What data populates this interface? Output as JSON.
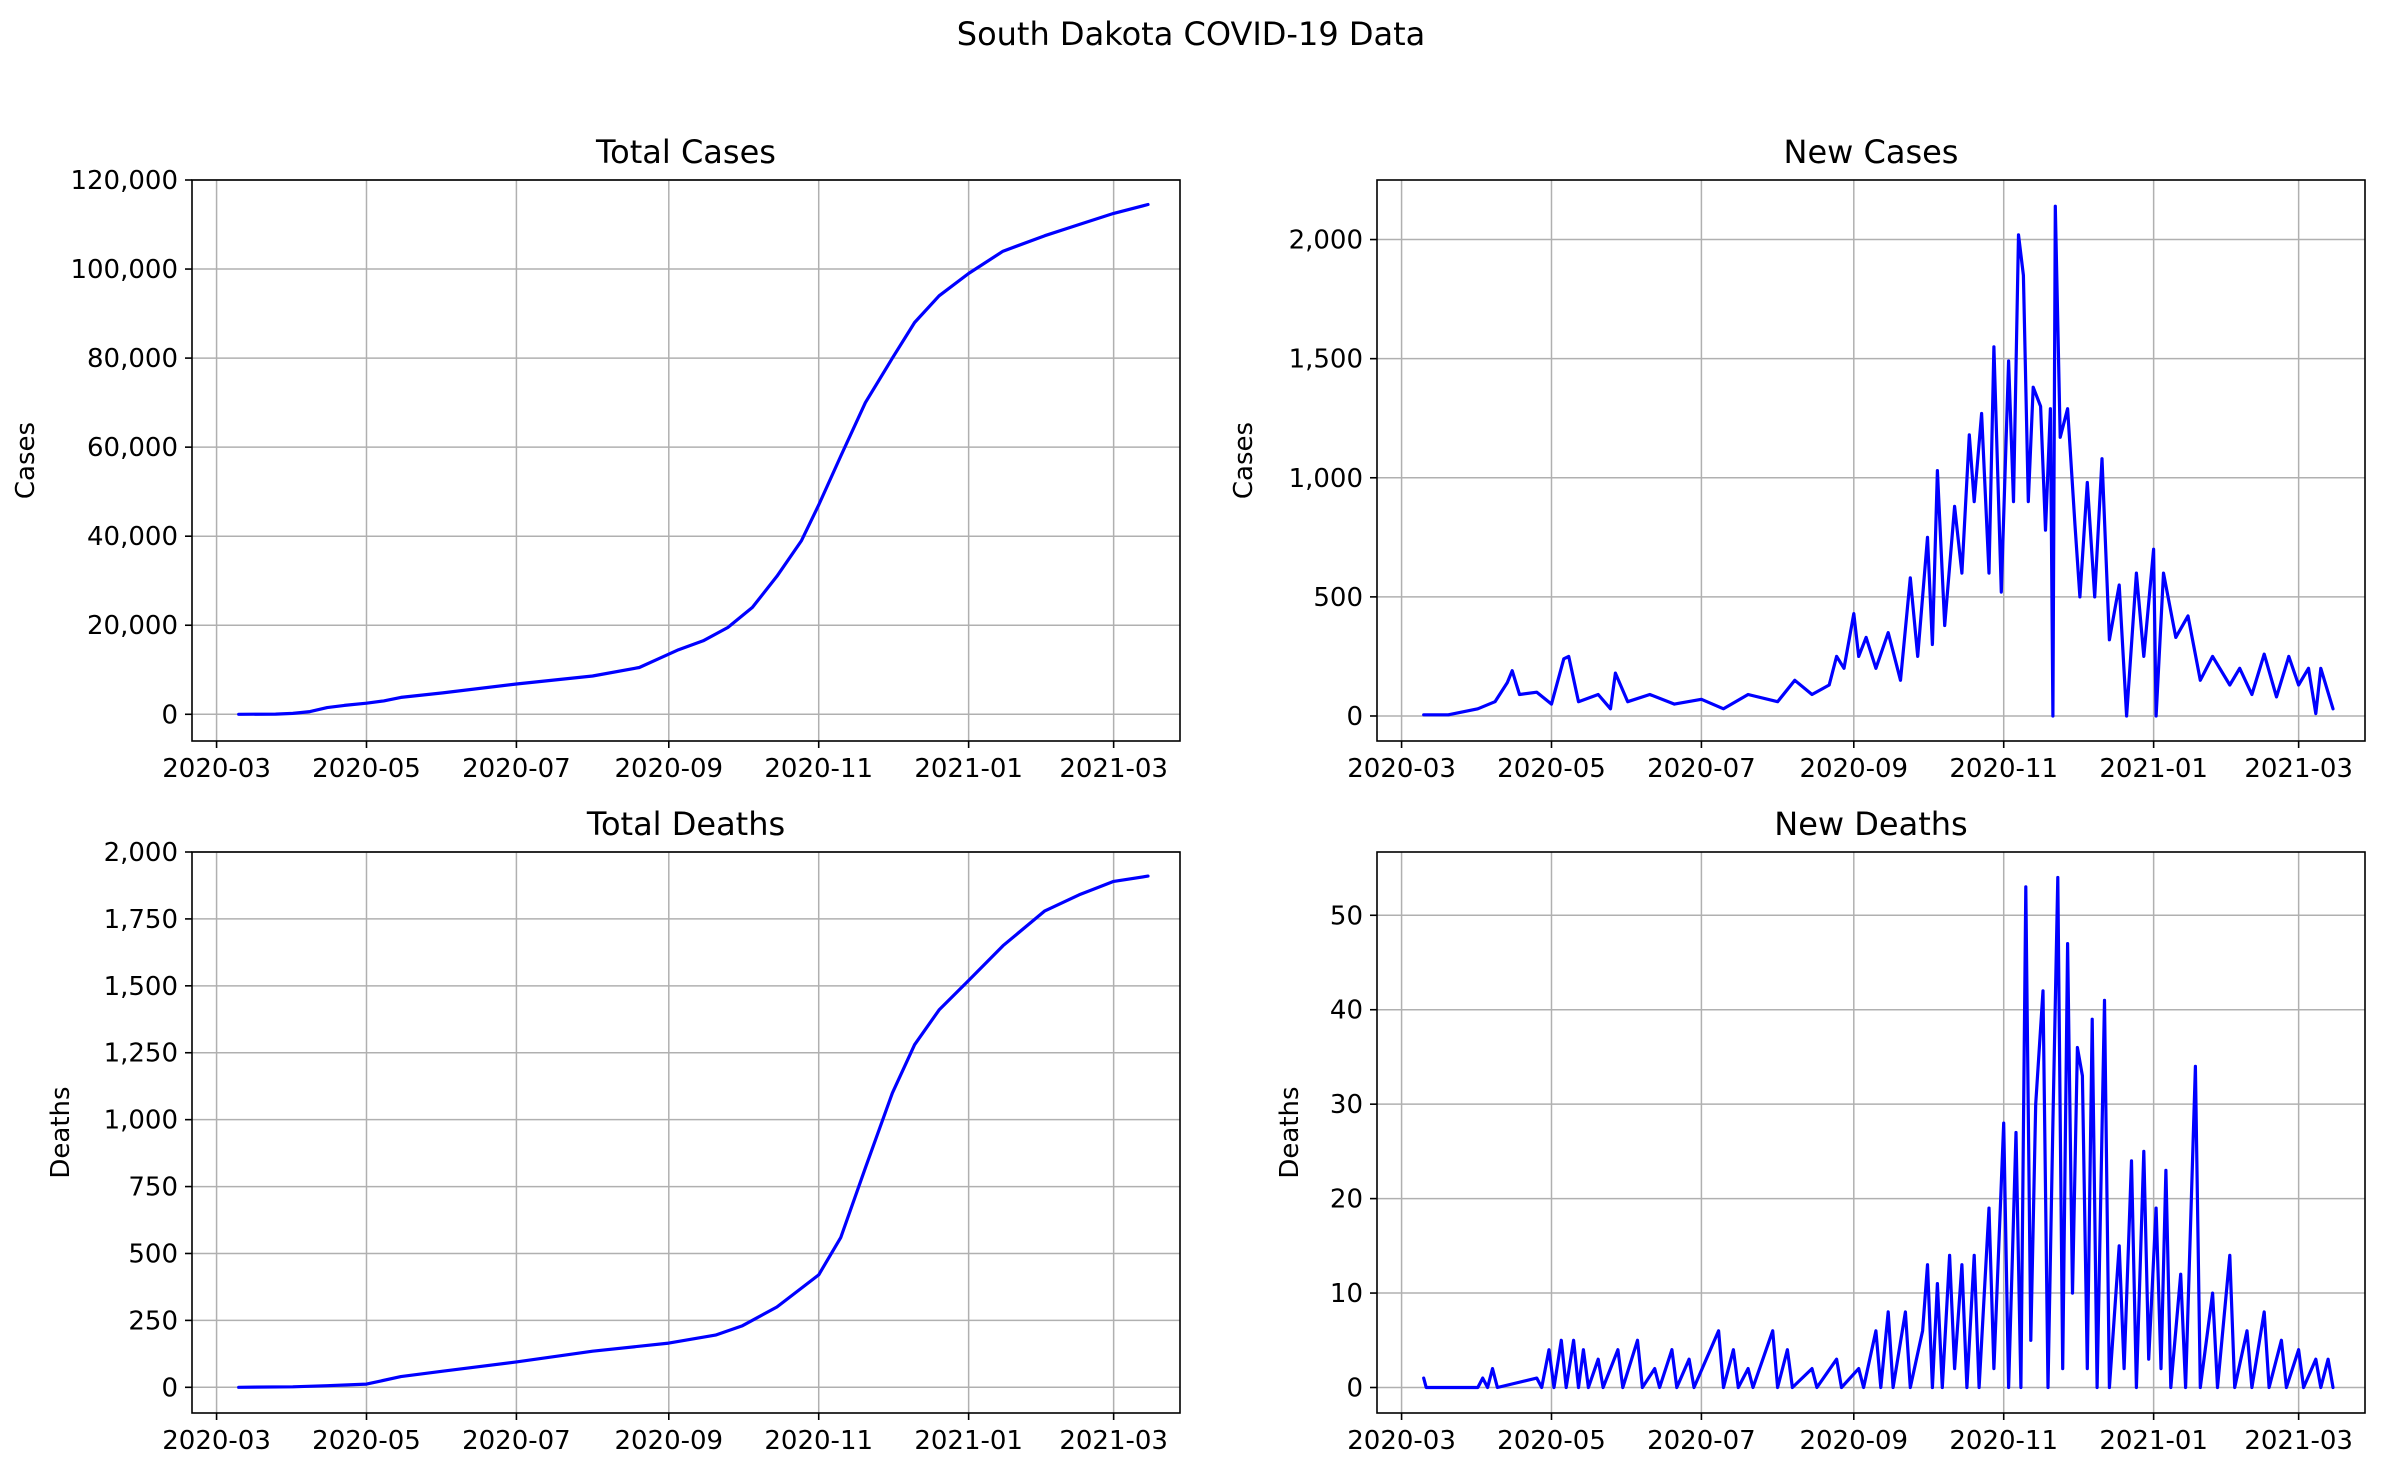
{
  "figure_title": "South Dakota COVID-19 Data",
  "chart_data": [
    {
      "type": "line",
      "title": "Total Cases",
      "xlabel": "",
      "ylabel": "Cases",
      "color": "#0000ff",
      "grid": true,
      "xlim": [
        "2020-02-20",
        "2021-03-28"
      ],
      "ylim": [
        -6000,
        120000
      ],
      "yticks": [
        0,
        20000,
        40000,
        60000,
        80000,
        100000,
        120000
      ],
      "ytick_labels": [
        "0",
        "20,000",
        "40,000",
        "60,000",
        "80,000",
        "100,000",
        "120,000"
      ],
      "xticks": [
        "2020-03-01",
        "2020-05-01",
        "2020-07-01",
        "2020-09-01",
        "2020-11-01",
        "2021-01-01",
        "2021-03-01"
      ],
      "xtick_labels": [
        "2020-03",
        "2020-05",
        "2020-07",
        "2020-09",
        "2020-11",
        "2021-01",
        "2021-03"
      ],
      "points": [
        [
          "2020-03-10",
          0
        ],
        [
          "2020-03-25",
          50
        ],
        [
          "2020-04-01",
          200
        ],
        [
          "2020-04-08",
          600
        ],
        [
          "2020-04-15",
          1500
        ],
        [
          "2020-04-22",
          2000
        ],
        [
          "2020-05-01",
          2500
        ],
        [
          "2020-05-08",
          3000
        ],
        [
          "2020-05-15",
          3800
        ],
        [
          "2020-06-01",
          4800
        ],
        [
          "2020-07-01",
          6800
        ],
        [
          "2020-08-01",
          8600
        ],
        [
          "2020-08-20",
          10500
        ],
        [
          "2020-08-28",
          12500
        ],
        [
          "2020-09-05",
          14500
        ],
        [
          "2020-09-15",
          16500
        ],
        [
          "2020-09-25",
          19500
        ],
        [
          "2020-10-05",
          24000
        ],
        [
          "2020-10-15",
          31000
        ],
        [
          "2020-10-25",
          39000
        ],
        [
          "2020-11-01",
          47000
        ],
        [
          "2020-11-10",
          58000
        ],
        [
          "2020-11-20",
          70000
        ],
        [
          "2020-12-01",
          80000
        ],
        [
          "2020-12-10",
          88000
        ],
        [
          "2020-12-20",
          94000
        ],
        [
          "2021-01-01",
          99000
        ],
        [
          "2021-01-15",
          104000
        ],
        [
          "2021-02-01",
          107500
        ],
        [
          "2021-02-15",
          110000
        ],
        [
          "2021-03-01",
          112500
        ],
        [
          "2021-03-15",
          114500
        ]
      ]
    },
    {
      "type": "line",
      "title": "New Cases",
      "xlabel": "",
      "ylabel": "Cases",
      "color": "#0000ff",
      "grid": true,
      "xlim": [
        "2020-02-20",
        "2021-03-28"
      ],
      "ylim": [
        -105,
        2250
      ],
      "yticks": [
        0,
        500,
        1000,
        1500,
        2000
      ],
      "ytick_labels": [
        "0",
        "500",
        "1,000",
        "1,500",
        "2,000"
      ],
      "xticks": [
        "2020-03-01",
        "2020-05-01",
        "2020-07-01",
        "2020-09-01",
        "2020-11-01",
        "2021-01-01",
        "2021-03-01"
      ],
      "xtick_labels": [
        "2020-03",
        "2020-05",
        "2020-07",
        "2020-09",
        "2020-11",
        "2021-01",
        "2021-03"
      ],
      "points": [
        [
          "2020-03-10",
          5
        ],
        [
          "2020-03-20",
          5
        ],
        [
          "2020-04-01",
          30
        ],
        [
          "2020-04-08",
          60
        ],
        [
          "2020-04-13",
          140
        ],
        [
          "2020-04-15",
          190
        ],
        [
          "2020-04-18",
          90
        ],
        [
          "2020-04-25",
          100
        ],
        [
          "2020-05-01",
          50
        ],
        [
          "2020-05-06",
          240
        ],
        [
          "2020-05-08",
          250
        ],
        [
          "2020-05-12",
          60
        ],
        [
          "2020-05-20",
          90
        ],
        [
          "2020-05-25",
          30
        ],
        [
          "2020-05-27",
          180
        ],
        [
          "2020-06-01",
          60
        ],
        [
          "2020-06-10",
          90
        ],
        [
          "2020-06-20",
          50
        ],
        [
          "2020-07-01",
          70
        ],
        [
          "2020-07-10",
          30
        ],
        [
          "2020-07-20",
          90
        ],
        [
          "2020-08-01",
          60
        ],
        [
          "2020-08-08",
          150
        ],
        [
          "2020-08-15",
          90
        ],
        [
          "2020-08-22",
          130
        ],
        [
          "2020-08-25",
          250
        ],
        [
          "2020-08-28",
          200
        ],
        [
          "2020-09-01",
          430
        ],
        [
          "2020-09-03",
          250
        ],
        [
          "2020-09-06",
          330
        ],
        [
          "2020-09-10",
          200
        ],
        [
          "2020-09-15",
          350
        ],
        [
          "2020-09-20",
          150
        ],
        [
          "2020-09-24",
          580
        ],
        [
          "2020-09-27",
          250
        ],
        [
          "2020-10-01",
          750
        ],
        [
          "2020-10-03",
          300
        ],
        [
          "2020-10-05",
          1030
        ],
        [
          "2020-10-08",
          380
        ],
        [
          "2020-10-12",
          880
        ],
        [
          "2020-10-15",
          600
        ],
        [
          "2020-10-18",
          1180
        ],
        [
          "2020-10-20",
          900
        ],
        [
          "2020-10-23",
          1270
        ],
        [
          "2020-10-26",
          600
        ],
        [
          "2020-10-28",
          1550
        ],
        [
          "2020-10-31",
          520
        ],
        [
          "2020-11-03",
          1490
        ],
        [
          "2020-11-05",
          900
        ],
        [
          "2020-11-07",
          2020
        ],
        [
          "2020-11-09",
          1850
        ],
        [
          "2020-11-11",
          900
        ],
        [
          "2020-11-13",
          1380
        ],
        [
          "2020-11-16",
          1300
        ],
        [
          "2020-11-18",
          780
        ],
        [
          "2020-11-20",
          1290
        ],
        [
          "2020-11-21",
          0
        ],
        [
          "2020-11-22",
          2140
        ],
        [
          "2020-11-24",
          1170
        ],
        [
          "2020-11-27",
          1290
        ],
        [
          "2020-11-30",
          800
        ],
        [
          "2020-12-02",
          500
        ],
        [
          "2020-12-05",
          980
        ],
        [
          "2020-12-08",
          500
        ],
        [
          "2020-12-11",
          1080
        ],
        [
          "2020-12-14",
          320
        ],
        [
          "2020-12-18",
          550
        ],
        [
          "2020-12-21",
          0
        ],
        [
          "2020-12-25",
          600
        ],
        [
          "2020-12-28",
          250
        ],
        [
          "2021-01-01",
          700
        ],
        [
          "2021-01-02",
          0
        ],
        [
          "2021-01-05",
          600
        ],
        [
          "2021-01-10",
          330
        ],
        [
          "2021-01-15",
          420
        ],
        [
          "2021-01-20",
          150
        ],
        [
          "2021-01-25",
          250
        ],
        [
          "2021-02-01",
          130
        ],
        [
          "2021-02-05",
          200
        ],
        [
          "2021-02-10",
          90
        ],
        [
          "2021-02-15",
          260
        ],
        [
          "2021-02-20",
          80
        ],
        [
          "2021-02-25",
          250
        ],
        [
          "2021-03-01",
          130
        ],
        [
          "2021-03-05",
          200
        ],
        [
          "2021-03-08",
          10
        ],
        [
          "2021-03-10",
          200
        ],
        [
          "2021-03-15",
          30
        ]
      ]
    },
    {
      "type": "line",
      "title": "Total Deaths",
      "xlabel": "",
      "ylabel": "Deaths",
      "color": "#0000ff",
      "grid": true,
      "xlim": [
        "2020-02-20",
        "2021-03-28"
      ],
      "ylim": [
        -96,
        2000
      ],
      "yticks": [
        0,
        250,
        500,
        750,
        1000,
        1250,
        1500,
        1750,
        2000
      ],
      "ytick_labels": [
        "0",
        "250",
        "500",
        "750",
        "1,000",
        "1,250",
        "1,500",
        "1,750",
        "2,000"
      ],
      "xticks": [
        "2020-03-01",
        "2020-05-01",
        "2020-07-01",
        "2020-09-01",
        "2020-11-01",
        "2021-01-01",
        "2021-03-01"
      ],
      "xtick_labels": [
        "2020-03",
        "2020-05",
        "2020-07",
        "2020-09",
        "2020-11",
        "2021-01",
        "2021-03"
      ],
      "points": [
        [
          "2020-03-10",
          0
        ],
        [
          "2020-04-01",
          2
        ],
        [
          "2020-04-15",
          6
        ],
        [
          "2020-05-01",
          12
        ],
        [
          "2020-05-15",
          40
        ],
        [
          "2020-06-01",
          60
        ],
        [
          "2020-07-01",
          95
        ],
        [
          "2020-08-01",
          135
        ],
        [
          "2020-09-01",
          165
        ],
        [
          "2020-09-20",
          195
        ],
        [
          "2020-10-01",
          230
        ],
        [
          "2020-10-15",
          300
        ],
        [
          "2020-11-01",
          420
        ],
        [
          "2020-11-10",
          560
        ],
        [
          "2020-11-20",
          820
        ],
        [
          "2020-12-01",
          1100
        ],
        [
          "2020-12-10",
          1280
        ],
        [
          "2020-12-20",
          1410
        ],
        [
          "2021-01-01",
          1520
        ],
        [
          "2021-01-15",
          1650
        ],
        [
          "2021-02-01",
          1780
        ],
        [
          "2021-02-15",
          1840
        ],
        [
          "2021-03-01",
          1890
        ],
        [
          "2021-03-15",
          1910
        ]
      ]
    },
    {
      "type": "line",
      "title": "New Deaths",
      "xlabel": "",
      "ylabel": "Deaths",
      "color": "#0000ff",
      "grid": true,
      "xlim": [
        "2020-02-20",
        "2021-03-28"
      ],
      "ylim": [
        -2.7,
        56.7
      ],
      "yticks": [
        0,
        10,
        20,
        30,
        40,
        50
      ],
      "ytick_labels": [
        "0",
        "10",
        "20",
        "30",
        "40",
        "50"
      ],
      "xticks": [
        "2020-03-01",
        "2020-05-01",
        "2020-07-01",
        "2020-09-01",
        "2020-11-01",
        "2021-01-01",
        "2021-03-01"
      ],
      "xtick_labels": [
        "2020-03",
        "2020-05",
        "2020-07",
        "2020-09",
        "2020-11",
        "2021-01",
        "2021-03"
      ],
      "points": [
        [
          "2020-03-10",
          1
        ],
        [
          "2020-03-11",
          0
        ],
        [
          "2020-04-01",
          0
        ],
        [
          "2020-04-03",
          1
        ],
        [
          "2020-04-05",
          0
        ],
        [
          "2020-04-07",
          2
        ],
        [
          "2020-04-09",
          0
        ],
        [
          "2020-04-25",
          1
        ],
        [
          "2020-04-27",
          0
        ],
        [
          "2020-04-30",
          4
        ],
        [
          "2020-05-02",
          0
        ],
        [
          "2020-05-05",
          5
        ],
        [
          "2020-05-07",
          0
        ],
        [
          "2020-05-10",
          5
        ],
        [
          "2020-05-12",
          0
        ],
        [
          "2020-05-14",
          4
        ],
        [
          "2020-05-16",
          0
        ],
        [
          "2020-05-20",
          3
        ],
        [
          "2020-05-22",
          0
        ],
        [
          "2020-05-28",
          4
        ],
        [
          "2020-05-30",
          0
        ],
        [
          "2020-06-05",
          5
        ],
        [
          "2020-06-07",
          0
        ],
        [
          "2020-06-12",
          2
        ],
        [
          "2020-06-14",
          0
        ],
        [
          "2020-06-19",
          4
        ],
        [
          "2020-06-21",
          0
        ],
        [
          "2020-06-26",
          3
        ],
        [
          "2020-06-28",
          0
        ],
        [
          "2020-07-08",
          6
        ],
        [
          "2020-07-10",
          0
        ],
        [
          "2020-07-14",
          4
        ],
        [
          "2020-07-16",
          0
        ],
        [
          "2020-07-20",
          2
        ],
        [
          "2020-07-22",
          0
        ],
        [
          "2020-07-30",
          6
        ],
        [
          "2020-08-01",
          0
        ],
        [
          "2020-08-05",
          4
        ],
        [
          "2020-08-07",
          0
        ],
        [
          "2020-08-15",
          2
        ],
        [
          "2020-08-17",
          0
        ],
        [
          "2020-08-25",
          3
        ],
        [
          "2020-08-27",
          0
        ],
        [
          "2020-09-03",
          2
        ],
        [
          "2020-09-05",
          0
        ],
        [
          "2020-09-10",
          6
        ],
        [
          "2020-09-12",
          0
        ],
        [
          "2020-09-15",
          8
        ],
        [
          "2020-09-17",
          0
        ],
        [
          "2020-09-22",
          8
        ],
        [
          "2020-09-24",
          0
        ],
        [
          "2020-09-29",
          6
        ],
        [
          "2020-10-01",
          13
        ],
        [
          "2020-10-03",
          0
        ],
        [
          "2020-10-05",
          11
        ],
        [
          "2020-10-07",
          0
        ],
        [
          "2020-10-10",
          14
        ],
        [
          "2020-10-12",
          2
        ],
        [
          "2020-10-15",
          13
        ],
        [
          "2020-10-17",
          0
        ],
        [
          "2020-10-20",
          14
        ],
        [
          "2020-10-22",
          0
        ],
        [
          "2020-10-26",
          19
        ],
        [
          "2020-10-28",
          2
        ],
        [
          "2020-11-01",
          28
        ],
        [
          "2020-11-03",
          0
        ],
        [
          "2020-11-06",
          27
        ],
        [
          "2020-11-08",
          0
        ],
        [
          "2020-11-10",
          53
        ],
        [
          "2020-11-12",
          5
        ],
        [
          "2020-11-14",
          30
        ],
        [
          "2020-11-17",
          42
        ],
        [
          "2020-11-19",
          0
        ],
        [
          "2020-11-21",
          28
        ],
        [
          "2020-11-23",
          54
        ],
        [
          "2020-11-25",
          2
        ],
        [
          "2020-11-27",
          47
        ],
        [
          "2020-11-29",
          10
        ],
        [
          "2020-12-01",
          36
        ],
        [
          "2020-12-03",
          33
        ],
        [
          "2020-12-05",
          2
        ],
        [
          "2020-12-07",
          39
        ],
        [
          "2020-12-09",
          0
        ],
        [
          "2020-12-12",
          41
        ],
        [
          "2020-12-14",
          0
        ],
        [
          "2020-12-18",
          15
        ],
        [
          "2020-12-20",
          2
        ],
        [
          "2020-12-23",
          24
        ],
        [
          "2020-12-25",
          0
        ],
        [
          "2020-12-28",
          25
        ],
        [
          "2020-12-30",
          3
        ],
        [
          "2021-01-02",
          19
        ],
        [
          "2021-01-04",
          2
        ],
        [
          "2021-01-06",
          23
        ],
        [
          "2021-01-08",
          0
        ],
        [
          "2021-01-12",
          12
        ],
        [
          "2021-01-14",
          0
        ],
        [
          "2021-01-18",
          34
        ],
        [
          "2021-01-20",
          0
        ],
        [
          "2021-01-25",
          10
        ],
        [
          "2021-01-27",
          0
        ],
        [
          "2021-02-01",
          14
        ],
        [
          "2021-02-03",
          0
        ],
        [
          "2021-02-08",
          6
        ],
        [
          "2021-02-10",
          0
        ],
        [
          "2021-02-15",
          8
        ],
        [
          "2021-02-17",
          0
        ],
        [
          "2021-02-22",
          5
        ],
        [
          "2021-02-24",
          0
        ],
        [
          "2021-03-01",
          4
        ],
        [
          "2021-03-03",
          0
        ],
        [
          "2021-03-08",
          3
        ],
        [
          "2021-03-10",
          0
        ],
        [
          "2021-03-13",
          3
        ],
        [
          "2021-03-15",
          0
        ]
      ]
    }
  ]
}
